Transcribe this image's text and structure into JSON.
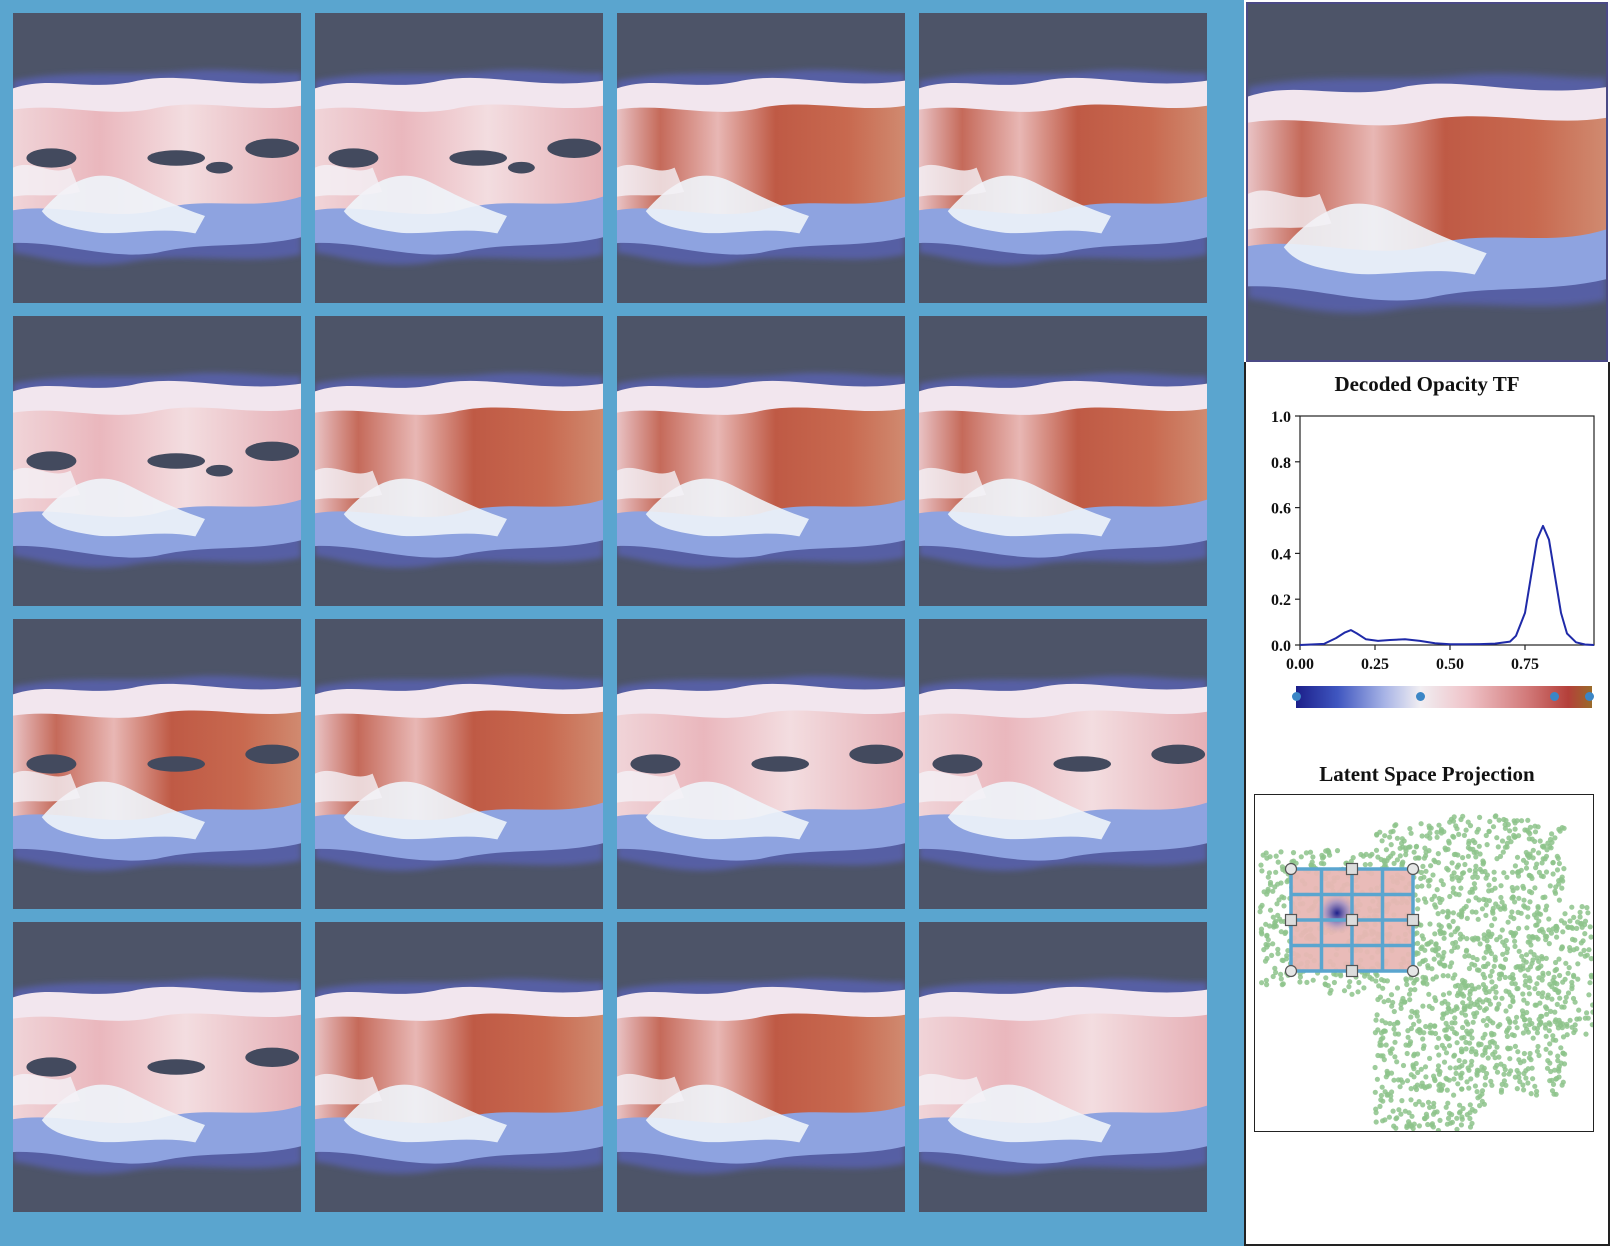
{
  "grid": {
    "rows": 4,
    "cols": 4,
    "cell_variants": [
      [
        "holes",
        "holes",
        "red",
        "red"
      ],
      [
        "holes",
        "red",
        "red",
        "red"
      ],
      [
        "mixed",
        "red",
        "holes-pale",
        "holes-pale"
      ],
      [
        "holes-pale",
        "red",
        "red",
        "red-pale"
      ]
    ]
  },
  "preview": {
    "variant": "red"
  },
  "opacity_tf": {
    "title": "Decoded Opacity TF",
    "chart_data": {
      "type": "line",
      "title": "Decoded Opacity TF",
      "xlabel": "",
      "ylabel": "",
      "xlim": [
        0,
        0.98
      ],
      "ylim": [
        0,
        1.0
      ],
      "x_ticks": [
        "0.00",
        "0.25",
        "0.50",
        "0.75"
      ],
      "y_ticks": [
        "0.0",
        "0.2",
        "0.4",
        "0.6",
        "0.8",
        "1.0"
      ],
      "series": [
        {
          "color": "#1f2aa8",
          "x": [
            0,
            0.08,
            0.12,
            0.15,
            0.17,
            0.19,
            0.22,
            0.26,
            0.3,
            0.35,
            0.4,
            0.45,
            0.5,
            0.55,
            0.6,
            0.65,
            0.7,
            0.72,
            0.75,
            0.77,
            0.79,
            0.81,
            0.83,
            0.85,
            0.87,
            0.89,
            0.92,
            0.95,
            0.98
          ],
          "y": [
            0.0,
            0.005,
            0.03,
            0.055,
            0.065,
            0.05,
            0.025,
            0.018,
            0.022,
            0.025,
            0.018,
            0.008,
            0.003,
            0.003,
            0.004,
            0.006,
            0.015,
            0.04,
            0.14,
            0.3,
            0.46,
            0.52,
            0.46,
            0.3,
            0.14,
            0.05,
            0.012,
            0.002,
            0.0
          ]
        }
      ]
    },
    "colorbar": {
      "colors": [
        "#1c1f8a",
        "#a8b4e6",
        "#f1eef2",
        "#d27a7a",
        "#9a6b2a"
      ],
      "control_points": [
        0.0,
        0.42,
        0.87,
        0.99
      ]
    }
  },
  "projection": {
    "title": "Latent Space Projection",
    "point_color": "#8dc38b",
    "grid_color": "#5aa5cf",
    "handle_icons": [
      "circle-handle-icon",
      "square-handle-icon"
    ]
  }
}
